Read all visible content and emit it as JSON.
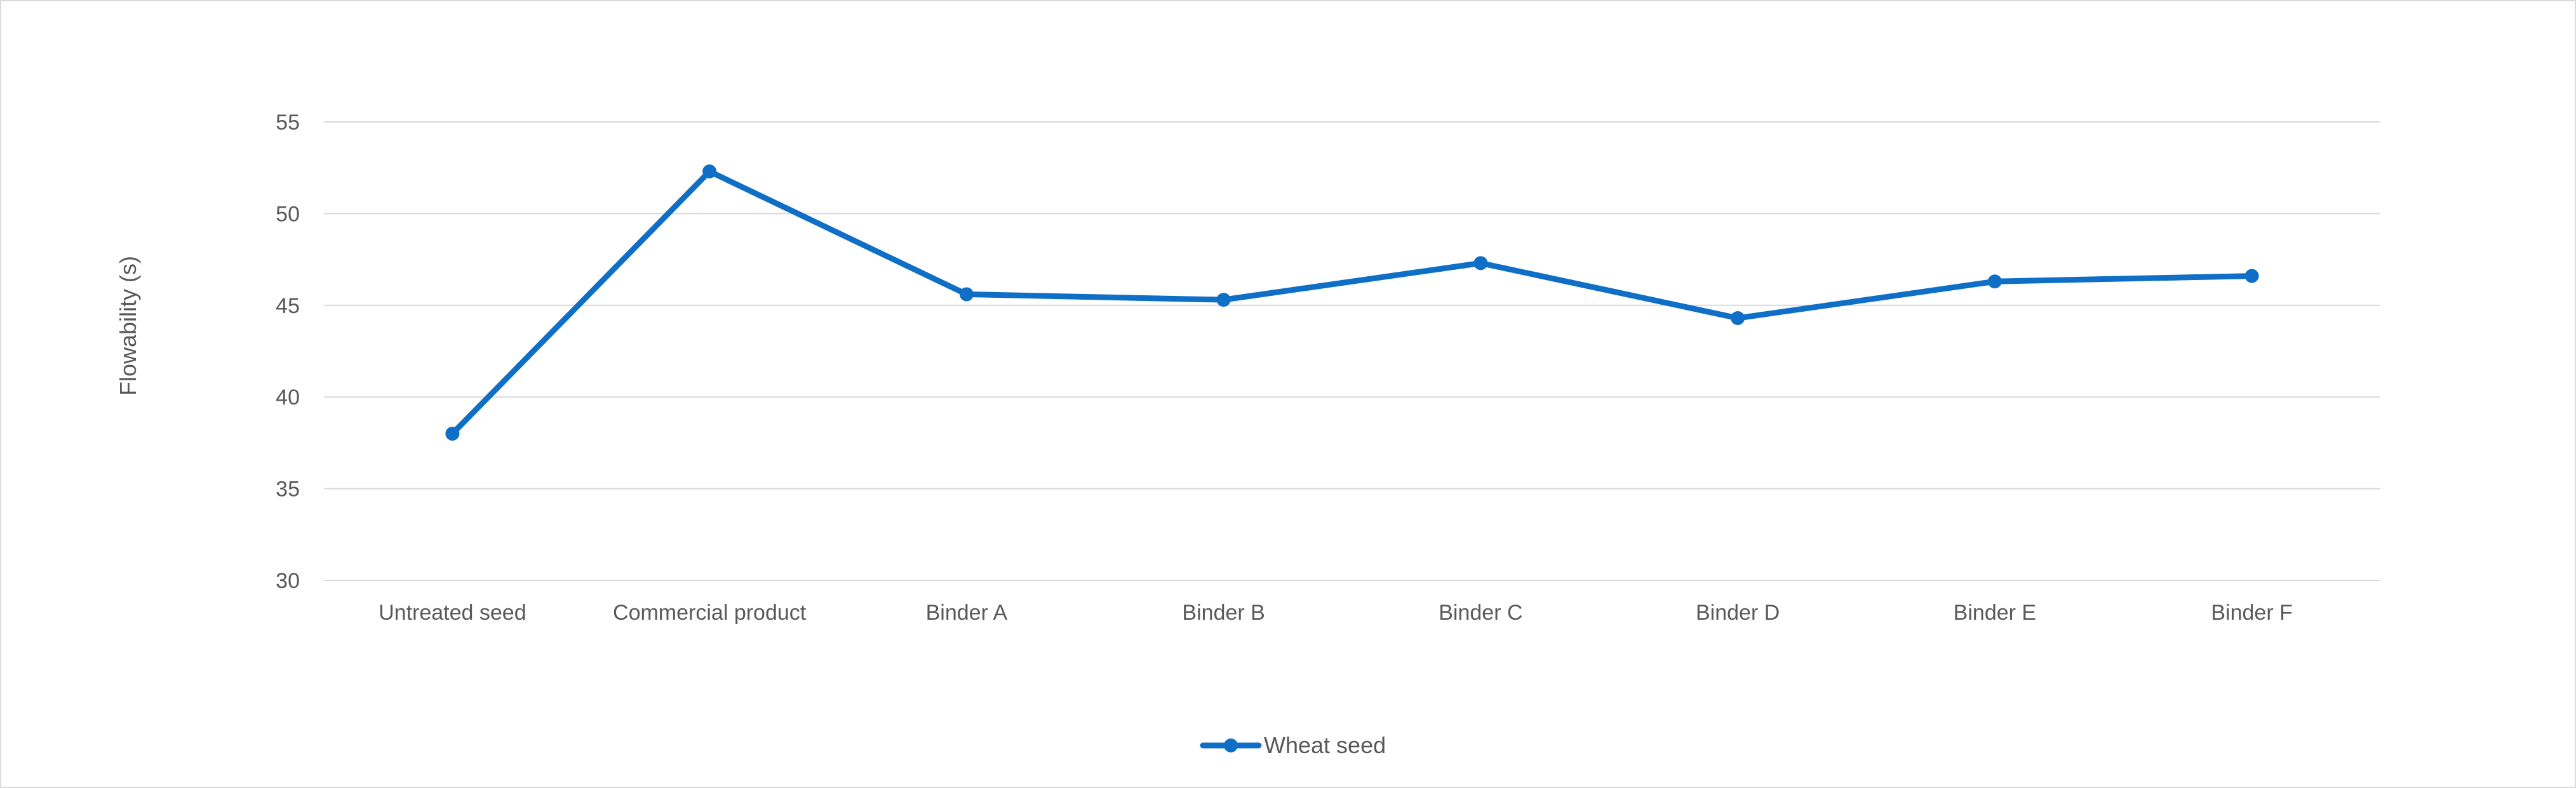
{
  "chart_data": {
    "type": "line",
    "title": "",
    "xlabel": "",
    "ylabel": "Flowability (s)",
    "ylim": [
      30,
      55
    ],
    "yticks": [
      30,
      35,
      40,
      45,
      50,
      55
    ],
    "grid": true,
    "legend_position": "bottom",
    "categories": [
      "Untreated seed",
      "Commercial product",
      "Binder A",
      "Binder B",
      "Binder C",
      "Binder D",
      "Binder E",
      "Binder F"
    ],
    "series": [
      {
        "name": "Wheat seed",
        "color": "#0f6fc6",
        "values": [
          38.0,
          52.3,
          45.6,
          45.3,
          47.3,
          44.3,
          46.3,
          46.6
        ]
      }
    ]
  },
  "colors": {
    "gridline": "#d9d9d9",
    "text": "#595959",
    "border": "#d9d9d9"
  }
}
